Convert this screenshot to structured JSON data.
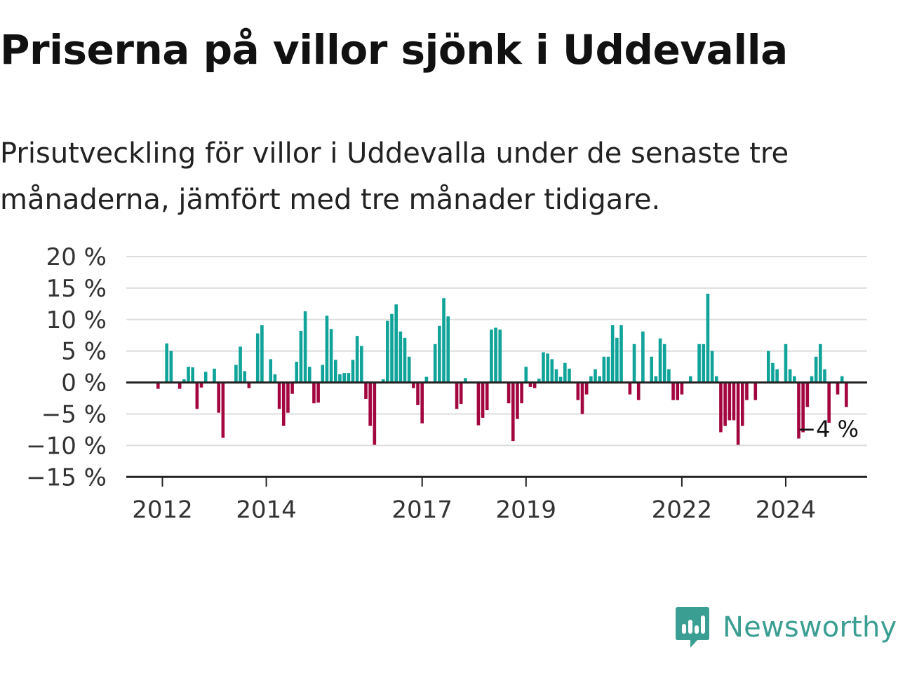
{
  "header": {
    "title": "Priserna på villor sjönk i Uddevalla",
    "subtitle": "Prisutveckling för villor i Uddevalla under de senaste tre månaderna, jämfört med tre månader tidigare."
  },
  "brand": {
    "name": "Newsworthy",
    "color": "#3a9e92"
  },
  "colors": {
    "positive": "#0fa399",
    "negative": "#a3063f",
    "grid": "#dddddd",
    "axis": "#222222"
  },
  "chart_data": {
    "type": "bar",
    "title": "Priserna på villor sjönk i Uddevalla",
    "subtitle": "Prisutveckling för villor i Uddevalla under de senaste tre månaderna, jämfört med tre månader tidigare.",
    "xlabel": "",
    "ylabel": "",
    "ylim": [
      -15,
      20
    ],
    "y_ticks": [
      20,
      15,
      10,
      5,
      0,
      -5,
      -10,
      -15
    ],
    "y_tick_labels": [
      "20 %",
      "15 %",
      "10 %",
      "5 %",
      "0 %",
      "−5 %",
      "−10 %",
      "−15 %"
    ],
    "x_ticks": [
      {
        "label": "2012",
        "value": "2012-01"
      },
      {
        "label": "2014",
        "value": "2014-01"
      },
      {
        "label": "2017",
        "value": "2017-01"
      },
      {
        "label": "2019",
        "value": "2019-01"
      },
      {
        "label": "2022",
        "value": "2022-01"
      },
      {
        "label": "2024",
        "value": "2024-01"
      }
    ],
    "grid": true,
    "start_month": "2011-12",
    "values": [
      -1,
      0,
      6.2,
      5,
      0,
      -1,
      0.5,
      2.5,
      2.4,
      -4.2,
      -0.8,
      1.7,
      0,
      2.2,
      -4.8,
      -8.8,
      0,
      0,
      2.8,
      5.7,
      1.8,
      -0.9,
      0,
      7.8,
      9.1,
      0,
      3.7,
      1.3,
      -4.2,
      -6.9,
      -4.8,
      -1.8,
      3.3,
      8.2,
      11.3,
      2.5,
      -3.3,
      -3.2,
      2.8,
      10.6,
      8.5,
      3.6,
      1.3,
      1.5,
      1.5,
      3.6,
      7.4,
      5.8,
      -2.6,
      -6.9,
      -9.9,
      0,
      0.5,
      9.8,
      10.9,
      12.4,
      8.1,
      7.1,
      4.1,
      -0.9,
      -3.6,
      -6.5,
      0.9,
      0,
      6.1,
      9,
      13.4,
      10.5,
      0,
      -4.2,
      -3.4,
      0.7,
      0,
      0,
      -6.8,
      -5.6,
      -4.4,
      8.4,
      8.7,
      8.4,
      0,
      -3.3,
      -9.3,
      -5.8,
      -3.3,
      2.5,
      -0.7,
      -0.9,
      0.6,
      4.8,
      4.6,
      3.7,
      2.1,
      0.9,
      3.1,
      2.2,
      0,
      -2.8,
      -5,
      -1.9,
      1,
      2.1,
      1,
      4.1,
      4.1,
      9.1,
      7.1,
      9.1,
      0,
      -1.9,
      6.1,
      -2.8,
      8.1,
      0,
      4.1,
      1,
      7,
      6.1,
      2.1,
      -2.8,
      -2.8,
      -1.9,
      0,
      1,
      0,
      6.1,
      6.1,
      14.1,
      5,
      1,
      -7.9,
      -6.9,
      -6,
      -6,
      -9.9,
      -6.9,
      -2.8,
      0,
      -2.8,
      0,
      0,
      5,
      3.1,
      2.1,
      0,
      6.1,
      2.1,
      1,
      -8.9,
      -7.9,
      -3.9,
      1,
      4.1,
      6.1,
      2.1,
      -6.4,
      0,
      -1.9,
      1,
      -3.9
    ],
    "annotations": [
      {
        "text": "−4 %",
        "target": "last"
      }
    ]
  }
}
